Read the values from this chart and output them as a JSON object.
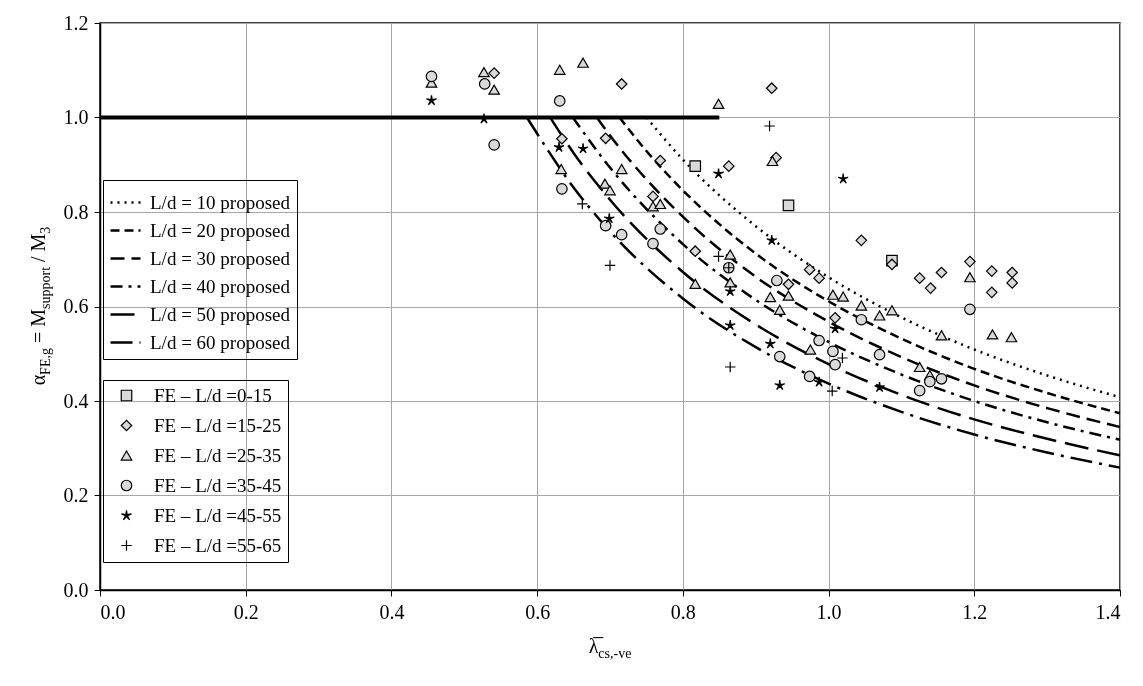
{
  "chart_data": {
    "type": "scatter",
    "xlabel": "λ̅$_{cs,-ve}$",
    "ylabel": "α$_{FE,g}$ = M$_{support}$ / M$_{3}$",
    "xlim": [
      0,
      1.4
    ],
    "xticks": [
      {
        "value": 0,
        "label": "0.0"
      },
      {
        "value": 0.2,
        "label": "0.2"
      },
      {
        "value": 0.4,
        "label": "0.4"
      },
      {
        "value": 0.6,
        "label": "0.6"
      },
      {
        "value": 0.8,
        "label": "0.8"
      },
      {
        "value": 1,
        "label": "1.0"
      },
      {
        "value": 1.2,
        "label": "1.2"
      },
      {
        "value": 1.4,
        "label": "1.4"
      }
    ],
    "ylim": [
      0,
      1.2
    ],
    "yticks": [
      {
        "value": 0,
        "label": "0.0"
      },
      {
        "value": 0.2,
        "label": "0.2"
      },
      {
        "value": 0.4,
        "label": "0.4"
      },
      {
        "value": 0.6,
        "label": "0.6"
      },
      {
        "value": 0.8,
        "label": "0.8"
      },
      {
        "value": 1,
        "label": "1.0"
      },
      {
        "value": 1.2,
        "label": "1.2"
      }
    ],
    "grid": true,
    "legend": "left",
    "series": [
      {
        "type": "line",
        "color": "#000000",
        "line_style": "solid",
        "x": [
          0,
          0.85
        ],
        "values": [
          1,
          1
        ]
      },
      {
        "type": "line",
        "name": "L/d = 10 proposed",
        "color": "#000000",
        "line_style": "dotted",
        "x": [
          0.75,
          0.8,
          0.9,
          1.0,
          1.1,
          1.2,
          1.3,
          1.4
        ],
        "values": [
          1.0,
          0.911,
          0.77,
          0.662,
          0.577,
          0.509,
          0.454,
          0.408
        ]
      },
      {
        "type": "line",
        "name": "L/d = 20 proposed",
        "color": "#000000",
        "line_style": "dashed",
        "x": [
          0.713,
          0.75,
          0.8,
          0.9,
          1.0,
          1.1,
          1.2,
          1.3,
          1.4
        ],
        "values": [
          1.0,
          0.929,
          0.846,
          0.712,
          0.611,
          0.532,
          0.468,
          0.417,
          0.374
        ]
      },
      {
        "type": "line",
        "name": "L/d = 30 proposed",
        "color": "#000000",
        "line_style": "longdash",
        "x": [
          0.682,
          0.7,
          0.8,
          0.9,
          1.0,
          1.1,
          1.2,
          1.3,
          1.4
        ],
        "values": [
          1.0,
          0.962,
          0.79,
          0.663,
          0.568,
          0.493,
          0.433,
          0.385,
          0.345
        ]
      },
      {
        "type": "line",
        "name": "L/d = 40 proposed",
        "color": "#000000",
        "line_style": "dashdot",
        "x": [
          0.649,
          0.7,
          0.8,
          0.9,
          1.0,
          1.1,
          1.2,
          1.3,
          1.4
        ],
        "values": [
          1.0,
          0.894,
          0.732,
          0.614,
          0.525,
          0.456,
          0.4,
          0.355,
          0.318
        ]
      },
      {
        "type": "line",
        "name": "L/d = 50 proposed",
        "color": "#000000",
        "line_style": "longerdash",
        "x": [
          0.618,
          0.65,
          0.7,
          0.8,
          0.9,
          1.0,
          1.1,
          1.2,
          1.3,
          1.4
        ],
        "values": [
          1.0,
          0.925,
          0.826,
          0.673,
          0.562,
          0.478,
          0.413,
          0.361,
          0.32,
          0.285
        ]
      },
      {
        "type": "line",
        "name": "L/d = 60 proposed",
        "color": "#000000",
        "line_style": "longdashdot",
        "x": [
          0.586,
          0.65,
          0.7,
          0.8,
          0.9,
          1.0,
          1.1,
          1.2,
          1.3,
          1.4
        ],
        "values": [
          1.0,
          0.852,
          0.759,
          0.617,
          0.514,
          0.437,
          0.377,
          0.329,
          0.291,
          0.259
        ]
      },
      {
        "name": "FE – L/d =0-15",
        "marker": "square",
        "color": "#d9d9d9",
        "x": [
          0.817,
          0.945,
          1.087
        ],
        "values": [
          0.897,
          0.814,
          0.697
        ]
      },
      {
        "name": "FE – L/d =15-25",
        "marker": "diamond",
        "color": "#d9d9d9",
        "x": [
          0.541,
          0.716,
          0.922,
          0.634,
          0.694,
          0.769,
          0.863,
          0.759,
          0.928,
          0.817,
          0.945,
          1.009,
          1.045,
          1.087,
          0.974,
          0.987,
          1.125,
          1.14,
          1.155,
          1.194,
          1.224,
          1.224,
          1.252,
          1.252
        ],
        "values": [
          1.094,
          1.071,
          1.062,
          0.955,
          0.956,
          0.909,
          0.897,
          0.833,
          0.915,
          0.717,
          0.647,
          0.576,
          0.74,
          0.689,
          0.678,
          0.66,
          0.66,
          0.639,
          0.672,
          0.695,
          0.675,
          0.63,
          0.672,
          0.65
        ]
      },
      {
        "name": "FE – L/d =25-35",
        "marker": "triangle",
        "color": "#d9d9d9",
        "x": [
          0.455,
          0.527,
          0.541,
          0.631,
          0.663,
          0.849,
          0.633,
          0.716,
          0.693,
          0.7,
          0.759,
          0.769,
          0.923,
          0.865,
          0.817,
          0.865,
          0.92,
          0.933,
          0.945,
          1.006,
          1.02,
          1.045,
          1.07,
          1.087,
          0.975,
          1.194,
          1.155,
          1.225,
          1.251,
          1.125,
          1.139
        ],
        "values": [
          1.074,
          1.096,
          1.059,
          1.101,
          1.116,
          1.029,
          0.891,
          0.891,
          0.86,
          0.846,
          0.812,
          0.817,
          0.908,
          0.71,
          0.648,
          0.651,
          0.62,
          0.593,
          0.623,
          0.625,
          0.621,
          0.602,
          0.581,
          0.592,
          0.509,
          0.662,
          0.539,
          0.541,
          0.535,
          0.472,
          0.455
        ]
      },
      {
        "name": "FE – L/d =35-45",
        "marker": "circle",
        "color": "#d9d9d9",
        "x": [
          0.455,
          0.528,
          0.541,
          0.631,
          0.634,
          0.694,
          0.716,
          0.769,
          0.759,
          0.863,
          0.929,
          1.045,
          0.987,
          1.006,
          1.009,
          0.933,
          0.974,
          1.07,
          1.194,
          1.155,
          1.139,
          1.125
        ],
        "values": [
          1.087,
          1.071,
          0.942,
          1.035,
          0.849,
          0.771,
          0.752,
          0.764,
          0.733,
          0.682,
          0.655,
          0.572,
          0.528,
          0.505,
          0.477,
          0.494,
          0.452,
          0.498,
          0.594,
          0.447,
          0.441,
          0.422
        ]
      },
      {
        "name": "FE – L/d =45-55",
        "marker": "star",
        "color": "#000000",
        "x": [
          0.455,
          0.527,
          0.63,
          0.663,
          0.849,
          0.699,
          0.922,
          1.02,
          0.865,
          0.865,
          0.92,
          1.009,
          0.987,
          0.933,
          1.07
        ],
        "values": [
          1.036,
          0.997,
          0.937,
          0.934,
          0.881,
          0.786,
          0.74,
          0.87,
          0.632,
          0.56,
          0.521,
          0.553,
          0.44,
          0.433,
          0.429
        ]
      },
      {
        "name": "FE – L/d =55-65",
        "marker": "cross",
        "color": "#000000",
        "x": [
          0.919,
          0.662,
          0.7,
          0.849,
          0.863,
          0.865,
          1.019,
          1.005
        ],
        "values": [
          0.982,
          0.817,
          0.687,
          0.706,
          0.682,
          0.472,
          0.491,
          0.421
        ]
      }
    ]
  }
}
